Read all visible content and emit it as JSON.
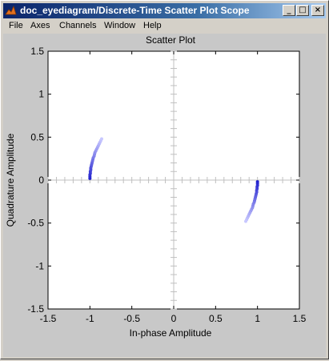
{
  "window": {
    "title": "doc_eyediagram/Discrete-Time Scatter Plot Scope",
    "title_color": "#0a246a",
    "buttons": {
      "minimize": "_",
      "maximize": "□",
      "close": "×"
    }
  },
  "menubar": {
    "items": [
      {
        "id": "file",
        "label": "File"
      },
      {
        "id": "axes",
        "label": "Axes"
      },
      {
        "id": "channels",
        "label": "Channels"
      },
      {
        "id": "window",
        "label": "Window"
      },
      {
        "id": "help",
        "label": "Help"
      }
    ]
  },
  "chart_data": {
    "type": "scatter",
    "title": "Scatter Plot",
    "xlabel": "In-phase Amplitude",
    "ylabel": "Quadrature Amplitude",
    "xlim": [
      -1.5,
      1.5
    ],
    "ylim": [
      -1.5,
      1.5
    ],
    "xticks": [
      -1.5,
      -1,
      -0.5,
      0,
      0.5,
      1,
      1.5
    ],
    "yticks": [
      -1.5,
      -1,
      -0.5,
      0,
      0.5,
      1,
      1.5
    ],
    "xtick_labels": [
      "-1.5",
      "-1",
      "-0.5",
      "0",
      "0.5",
      "1",
      "1.5"
    ],
    "ytick_labels": [
      "-1.5",
      "-1",
      "-0.5",
      "0",
      "0.5",
      "1",
      "1.5"
    ],
    "grid": false,
    "colors": {
      "point_dark": "#1a1acc",
      "point_light": "#c8c8ff",
      "axes_bg": "#ffffff",
      "figure_bg": "#c8c8c8"
    },
    "series": [
      {
        "points": [
          [
            -1.0,
            0.02
          ],
          [
            -1.0,
            0.04
          ],
          [
            -1.0,
            0.06
          ],
          [
            -0.995,
            0.08
          ],
          [
            -0.995,
            0.1
          ],
          [
            -0.99,
            0.12
          ],
          [
            -0.99,
            0.14
          ],
          [
            -0.985,
            0.16
          ],
          [
            -0.98,
            0.18
          ],
          [
            -0.975,
            0.2
          ],
          [
            -0.97,
            0.22
          ],
          [
            -0.965,
            0.24
          ],
          [
            -0.96,
            0.26
          ],
          [
            -0.95,
            0.28
          ],
          [
            -0.945,
            0.3
          ],
          [
            -0.94,
            0.32
          ],
          [
            -0.93,
            0.34
          ],
          [
            -0.92,
            0.36
          ],
          [
            -0.91,
            0.38
          ],
          [
            -0.9,
            0.4
          ],
          [
            -0.89,
            0.42
          ],
          [
            -0.88,
            0.44
          ],
          [
            -0.87,
            0.46
          ],
          [
            -0.86,
            0.48
          ],
          [
            1.0,
            -0.02
          ],
          [
            1.0,
            -0.04
          ],
          [
            1.0,
            -0.06
          ],
          [
            0.995,
            -0.08
          ],
          [
            0.995,
            -0.1
          ],
          [
            0.99,
            -0.12
          ],
          [
            0.99,
            -0.14
          ],
          [
            0.985,
            -0.16
          ],
          [
            0.98,
            -0.18
          ],
          [
            0.975,
            -0.2
          ],
          [
            0.97,
            -0.22
          ],
          [
            0.965,
            -0.24
          ],
          [
            0.96,
            -0.26
          ],
          [
            0.95,
            -0.28
          ],
          [
            0.945,
            -0.3
          ],
          [
            0.94,
            -0.32
          ],
          [
            0.93,
            -0.34
          ],
          [
            0.92,
            -0.36
          ],
          [
            0.91,
            -0.38
          ],
          [
            0.9,
            -0.4
          ],
          [
            0.89,
            -0.42
          ],
          [
            0.88,
            -0.44
          ],
          [
            0.87,
            -0.46
          ],
          [
            0.86,
            -0.48
          ]
        ]
      }
    ]
  }
}
